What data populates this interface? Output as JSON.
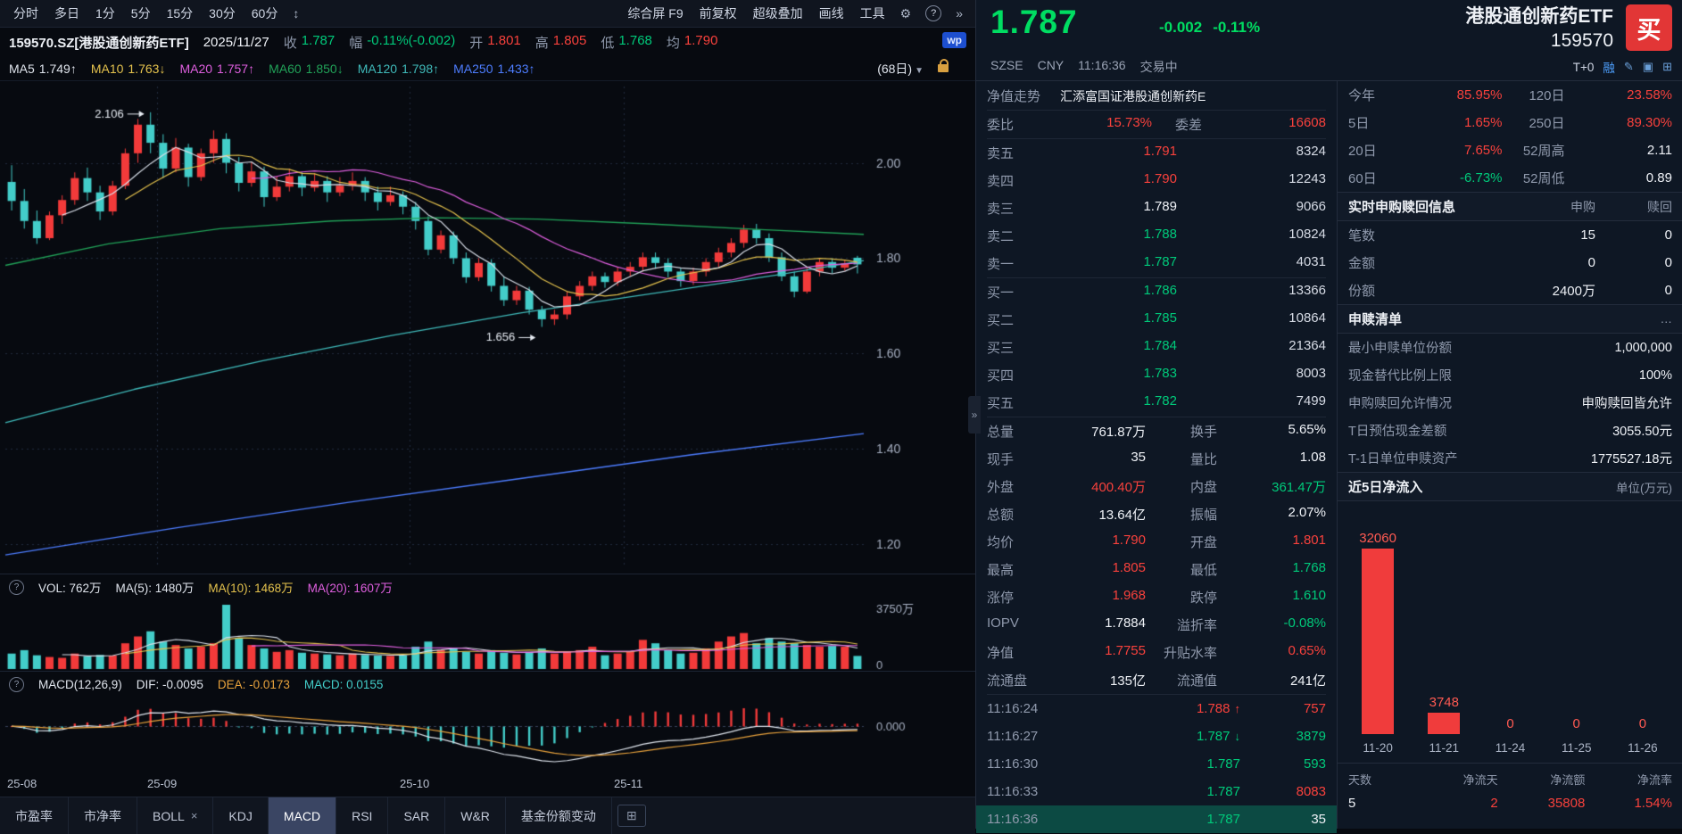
{
  "colors": {
    "red": "#f8413c",
    "green": "#00c97a",
    "big_green": "#00dd62",
    "white": "#eef1f6",
    "gray": "#8f99ac",
    "yellow": "#e4c24d",
    "magenta": "#df5fdf",
    "blue": "#4d7dff",
    "orange": "#e8a23c",
    "cyan": "#43cdc9",
    "ma60": "#21a258",
    "ma120": "#3fb9b9",
    "candle_up": "#f23a3a",
    "candle_down": "#43cdc9",
    "flow_bar": "#f03c3c"
  },
  "toolbar": {
    "periods": [
      "分时",
      "多日",
      "1分",
      "5分",
      "15分",
      "30分",
      "60分"
    ],
    "expand_icon": "↕",
    "tools": [
      "综合屏 F9",
      "前复权",
      "超级叠加",
      "画线",
      "工具"
    ],
    "gear_icon": "⚙",
    "help_icon": "?",
    "more_icon": "»"
  },
  "info_bar": {
    "symbol": "159570.SZ[港股通创新药ETF]",
    "date": "2025/11/27",
    "fields": [
      {
        "label": "收",
        "value": "1.787",
        "color": "green"
      },
      {
        "label": "幅",
        "value": "-0.11%(-0.002)",
        "color": "green"
      },
      {
        "label": "开",
        "value": "1.801",
        "color": "red"
      },
      {
        "label": "高",
        "value": "1.805",
        "color": "red"
      },
      {
        "label": "低",
        "value": "1.768",
        "color": "green"
      },
      {
        "label": "均",
        "value": "1.790",
        "color": "red"
      }
    ],
    "wp_badge": "wp"
  },
  "ma_bar": {
    "items": [
      {
        "label": "MA5",
        "value": "1.749↑",
        "color": "white"
      },
      {
        "label": "MA10",
        "value": "1.763↓",
        "color": "yellow"
      },
      {
        "label": "MA20",
        "value": "1.757↑",
        "color": "magenta"
      },
      {
        "label": "MA60",
        "value": "1.850↓",
        "color": "ma60"
      },
      {
        "label": "MA120",
        "value": "1.798↑",
        "color": "ma120"
      },
      {
        "label": "MA250",
        "value": "1.433↑",
        "color": "blue"
      }
    ],
    "period_selector": "(68日)"
  },
  "vol_header": {
    "vol": "VOL: 762万",
    "ma5": "MA(5): 1480万",
    "ma10": "MA(10): 1468万",
    "ma20": "MA(20): 1607万"
  },
  "macd_header": {
    "name": "MACD(12,26,9)",
    "dif": "DIF: -0.0095",
    "dea": "DEA: -0.0173",
    "macd": "MACD: 0.0155"
  },
  "tabs": [
    {
      "label": "市盈率"
    },
    {
      "label": "市净率"
    },
    {
      "label": "BOLL",
      "closable": true
    },
    {
      "label": "KDJ"
    },
    {
      "label": "MACD",
      "active": true
    },
    {
      "label": "RSI"
    },
    {
      "label": "SAR"
    },
    {
      "label": "W&R"
    },
    {
      "label": "基金份额变动"
    }
  ],
  "tab_add_icon": "⊞",
  "collapse_icon": "»",
  "chart_data": {
    "type": "candlestick",
    "x_labels": [
      "25-08",
      "25-09",
      "25-10",
      "25-11"
    ],
    "x_label_indices": [
      0,
      12,
      32,
      49
    ],
    "y_ticks": [
      "2.00",
      "1.80",
      "1.60",
      "1.40",
      "1.20"
    ],
    "y_tick_values": [
      2.0,
      1.8,
      1.6,
      1.4,
      1.2
    ],
    "price_domain": [
      1.15,
      2.16
    ],
    "annotations": [
      {
        "text": "2.106",
        "index": 11,
        "anchor": "high"
      },
      {
        "text": "1.656",
        "index": 42,
        "anchor": "low"
      }
    ],
    "candles": [
      [
        1.96,
        1.995,
        1.9,
        1.92
      ],
      [
        1.92,
        1.945,
        1.862,
        1.878
      ],
      [
        1.878,
        1.9,
        1.83,
        1.842
      ],
      [
        1.842,
        1.898,
        1.838,
        1.89
      ],
      [
        1.89,
        1.932,
        1.872,
        1.922
      ],
      [
        1.922,
        1.98,
        1.912,
        1.968
      ],
      [
        1.968,
        1.99,
        1.92,
        1.938
      ],
      [
        1.938,
        1.952,
        1.88,
        1.898
      ],
      [
        1.898,
        1.962,
        1.89,
        1.952
      ],
      [
        1.952,
        2.03,
        1.945,
        2.02
      ],
      [
        2.02,
        2.092,
        2.0,
        2.08
      ],
      [
        2.08,
        2.106,
        2.02,
        2.042
      ],
      [
        2.042,
        2.06,
        1.968,
        1.988
      ],
      [
        1.988,
        2.052,
        1.98,
        2.032
      ],
      [
        2.032,
        2.04,
        1.95,
        1.97
      ],
      [
        1.97,
        2.03,
        1.962,
        2.02
      ],
      [
        2.02,
        2.068,
        2.0,
        2.05
      ],
      [
        2.05,
        2.062,
        1.978,
        2.0
      ],
      [
        2.0,
        2.012,
        1.94,
        1.958
      ],
      [
        1.958,
        2.002,
        1.95,
        1.982
      ],
      [
        1.982,
        1.992,
        1.908,
        1.928
      ],
      [
        1.928,
        1.972,
        1.92,
        1.95
      ],
      [
        1.95,
        1.988,
        1.94,
        1.972
      ],
      [
        1.972,
        1.98,
        1.93,
        1.948
      ],
      [
        1.948,
        1.978,
        1.94,
        1.962
      ],
      [
        1.962,
        1.972,
        1.918,
        1.938
      ],
      [
        1.938,
        1.97,
        1.93,
        1.952
      ],
      [
        1.952,
        1.98,
        1.942,
        1.962
      ],
      [
        1.962,
        1.97,
        1.92,
        1.938
      ],
      [
        1.938,
        1.95,
        1.9,
        1.918
      ],
      [
        1.918,
        1.95,
        1.91,
        1.932
      ],
      [
        1.932,
        1.94,
        1.892,
        1.908
      ],
      [
        1.908,
        1.918,
        1.86,
        1.878
      ],
      [
        1.878,
        1.888,
        1.806,
        1.818
      ],
      [
        1.818,
        1.858,
        1.81,
        1.848
      ],
      [
        1.848,
        1.856,
        1.788,
        1.8
      ],
      [
        1.8,
        1.812,
        1.748,
        1.76
      ],
      [
        1.76,
        1.8,
        1.752,
        1.79
      ],
      [
        1.79,
        1.798,
        1.73,
        1.742
      ],
      [
        1.742,
        1.762,
        1.7,
        1.712
      ],
      [
        1.712,
        1.742,
        1.702,
        1.732
      ],
      [
        1.732,
        1.74,
        1.682,
        1.692
      ],
      [
        1.692,
        1.7,
        1.656,
        1.672
      ],
      [
        1.672,
        1.692,
        1.66,
        1.682
      ],
      [
        1.682,
        1.73,
        1.672,
        1.72
      ],
      [
        1.72,
        1.752,
        1.712,
        1.742
      ],
      [
        1.742,
        1.772,
        1.732,
        1.762
      ],
      [
        1.762,
        1.77,
        1.738,
        1.75
      ],
      [
        1.75,
        1.782,
        1.742,
        1.772
      ],
      [
        1.772,
        1.792,
        1.762,
        1.782
      ],
      [
        1.782,
        1.812,
        1.772,
        1.802
      ],
      [
        1.802,
        1.812,
        1.778,
        1.79
      ],
      [
        1.79,
        1.8,
        1.76,
        1.772
      ],
      [
        1.772,
        1.78,
        1.74,
        1.752
      ],
      [
        1.752,
        1.78,
        1.744,
        1.772
      ],
      [
        1.772,
        1.8,
        1.762,
        1.792
      ],
      [
        1.792,
        1.822,
        1.782,
        1.812
      ],
      [
        1.812,
        1.842,
        1.802,
        1.832
      ],
      [
        1.832,
        1.87,
        1.822,
        1.86
      ],
      [
        1.86,
        1.872,
        1.83,
        1.842
      ],
      [
        1.842,
        1.852,
        1.792,
        1.802
      ],
      [
        1.802,
        1.812,
        1.752,
        1.762
      ],
      [
        1.762,
        1.772,
        1.718,
        1.73
      ],
      [
        1.73,
        1.78,
        1.726,
        1.772
      ],
      [
        1.772,
        1.8,
        1.762,
        1.792
      ],
      [
        1.792,
        1.8,
        1.768,
        1.78
      ],
      [
        1.78,
        1.796,
        1.774,
        1.789
      ],
      [
        1.801,
        1.805,
        1.768,
        1.787
      ]
    ],
    "volumes": [
      900,
      1100,
      800,
      700,
      650,
      900,
      750,
      820,
      780,
      1500,
      1900,
      2200,
      1600,
      1400,
      1200,
      1300,
      1500,
      3750,
      1800,
      1400,
      1200,
      1000,
      1100,
      950,
      900,
      850,
      800,
      900,
      820,
      780,
      760,
      800,
      1300,
      1600,
      1100,
      1200,
      1000,
      900,
      1100,
      950,
      850,
      1000,
      1200,
      900,
      1000,
      1100,
      1300,
      800,
      900,
      1000,
      1700,
      1500,
      1100,
      900,
      950,
      1200,
      1600,
      1900,
      2100,
      1500,
      1800,
      1600,
      1500,
      1400,
      1300,
      1350,
      1300,
      762
    ],
    "vol_max": 3750,
    "vol_axis_top": "3750万",
    "vol_axis_bottom": "0",
    "macd_zero_label": "0.000",
    "ma_long": {
      "ma60": [
        [
          0,
          1.785
        ],
        [
          0.12,
          1.83
        ],
        [
          0.25,
          1.862
        ],
        [
          0.38,
          1.878
        ],
        [
          0.5,
          1.885
        ],
        [
          0.62,
          1.882
        ],
        [
          0.75,
          1.872
        ],
        [
          0.88,
          1.86
        ],
        [
          1,
          1.85
        ]
      ],
      "ma120": [
        [
          0,
          1.455
        ],
        [
          0.15,
          1.525
        ],
        [
          0.3,
          1.585
        ],
        [
          0.45,
          1.638
        ],
        [
          0.6,
          1.685
        ],
        [
          0.75,
          1.725
        ],
        [
          0.9,
          1.765
        ],
        [
          1,
          1.795
        ]
      ],
      "ma250": [
        [
          0,
          1.178
        ],
        [
          0.2,
          1.235
        ],
        [
          0.4,
          1.288
        ],
        [
          0.6,
          1.338
        ],
        [
          0.8,
          1.388
        ],
        [
          1,
          1.432
        ]
      ]
    }
  },
  "quote": {
    "price": "1.787",
    "change": "-0.002",
    "change_pct": "-0.11%",
    "name": "港股通创新药ETF",
    "code": "159570",
    "buy_button": "买",
    "exchange": "SZSE",
    "currency": "CNY",
    "time": "11:16:36",
    "status": "交易中",
    "t0_badge": "T+0",
    "margin_badge": "融"
  },
  "orderbook": {
    "nav_row": {
      "label": "净值走势",
      "value": "汇添富国证港股通创新药E"
    },
    "weibi": {
      "label": "委比",
      "value": "15.73%",
      "diff_label": "委差",
      "diff_value": "16608"
    },
    "asks": [
      {
        "label": "卖五",
        "price": "1.791",
        "vol": "8324",
        "color": "red"
      },
      {
        "label": "卖四",
        "price": "1.790",
        "vol": "12243",
        "color": "red"
      },
      {
        "label": "卖三",
        "price": "1.789",
        "vol": "9066",
        "color": "white"
      },
      {
        "label": "卖二",
        "price": "1.788",
        "vol": "10824",
        "color": "green"
      },
      {
        "label": "卖一",
        "price": "1.787",
        "vol": "4031",
        "color": "green"
      }
    ],
    "bids": [
      {
        "label": "买一",
        "price": "1.786",
        "vol": "13366",
        "color": "green"
      },
      {
        "label": "买二",
        "price": "1.785",
        "vol": "10864",
        "color": "green"
      },
      {
        "label": "买三",
        "price": "1.784",
        "vol": "21364",
        "color": "green"
      },
      {
        "label": "买四",
        "price": "1.783",
        "vol": "8003",
        "color": "green"
      },
      {
        "label": "买五",
        "price": "1.782",
        "vol": "7499",
        "color": "green"
      }
    ],
    "stats": [
      [
        {
          "l": "总量",
          "v": "761.87万",
          "c": "white"
        },
        {
          "l": "换手",
          "v": "5.65%",
          "c": "white"
        }
      ],
      [
        {
          "l": "现手",
          "v": "35",
          "c": "white"
        },
        {
          "l": "量比",
          "v": "1.08",
          "c": "white"
        }
      ],
      [
        {
          "l": "外盘",
          "v": "400.40万",
          "c": "red"
        },
        {
          "l": "内盘",
          "v": "361.47万",
          "c": "green"
        }
      ],
      [
        {
          "l": "总额",
          "v": "13.64亿",
          "c": "white"
        },
        {
          "l": "振幅",
          "v": "2.07%",
          "c": "white"
        }
      ],
      [
        {
          "l": "均价",
          "v": "1.790",
          "c": "red"
        },
        {
          "l": "开盘",
          "v": "1.801",
          "c": "red"
        }
      ],
      [
        {
          "l": "最高",
          "v": "1.805",
          "c": "red"
        },
        {
          "l": "最低",
          "v": "1.768",
          "c": "green"
        }
      ],
      [
        {
          "l": "涨停",
          "v": "1.968",
          "c": "red"
        },
        {
          "l": "跌停",
          "v": "1.610",
          "c": "green"
        }
      ],
      [
        {
          "l": "IOPV",
          "v": "1.7884",
          "c": "white"
        },
        {
          "l": "溢折率",
          "v": "-0.08%",
          "c": "green"
        }
      ],
      [
        {
          "l": "净值",
          "v": "1.7755",
          "c": "red"
        },
        {
          "l": "升贴水率",
          "v": "0.65%",
          "c": "red"
        }
      ],
      [
        {
          "l": "流通盘",
          "v": "135亿",
          "c": "white"
        },
        {
          "l": "流通值",
          "v": "241亿",
          "c": "white"
        }
      ]
    ],
    "ticks": [
      {
        "time": "11:16:24",
        "price": "1.788",
        "price_color": "red",
        "dir": "up",
        "vol": "757",
        "vol_color": "red",
        "highlight": false
      },
      {
        "time": "11:16:27",
        "price": "1.787",
        "price_color": "green",
        "dir": "down",
        "vol": "3879",
        "vol_color": "green",
        "highlight": false
      },
      {
        "time": "11:16:30",
        "price": "1.787",
        "price_color": "green",
        "dir": "",
        "vol": "593",
        "vol_color": "green",
        "highlight": false
      },
      {
        "time": "11:16:33",
        "price": "1.787",
        "price_color": "green",
        "dir": "",
        "vol": "8083",
        "vol_color": "red",
        "highlight": false
      },
      {
        "time": "11:16:36",
        "price": "1.787",
        "price_color": "green",
        "dir": "",
        "vol": "35",
        "vol_color": "white",
        "highlight": true
      }
    ]
  },
  "performance": [
    [
      {
        "l": "今年",
        "v": "85.95%",
        "c": "red"
      },
      {
        "l": "120日",
        "v": "23.58%",
        "c": "red"
      }
    ],
    [
      {
        "l": "5日",
        "v": "1.65%",
        "c": "red"
      },
      {
        "l": "250日",
        "v": "89.30%",
        "c": "red"
      }
    ],
    [
      {
        "l": "20日",
        "v": "7.65%",
        "c": "red"
      },
      {
        "l": "52周高",
        "v": "2.11",
        "c": "white"
      }
    ],
    [
      {
        "l": "60日",
        "v": "-6.73%",
        "c": "green"
      },
      {
        "l": "52周低",
        "v": "0.89",
        "c": "white"
      }
    ]
  ],
  "subscription": {
    "header": "实时申购赎回信息",
    "col1": "申购",
    "col2": "赎回",
    "rows": [
      {
        "l": "笔数",
        "v1": "15",
        "v2": "0"
      },
      {
        "l": "金额",
        "v1": "0",
        "v2": "0"
      },
      {
        "l": "份额",
        "v1": "2400万",
        "v2": "0"
      }
    ]
  },
  "redemption_list": {
    "header": "申赎清单",
    "more": "…",
    "rows": [
      {
        "l": "最小申赎单位份额",
        "v": "1,000,000"
      },
      {
        "l": "现金替代比例上限",
        "v": "100%"
      },
      {
        "l": "申购赎回允许情况",
        "v": "申购赎回皆允许"
      },
      {
        "l": "T日预估现金差额",
        "v": "3055.50元"
      },
      {
        "l": "T-1日单位申赎资产",
        "v": "1775527.18元"
      }
    ]
  },
  "net_inflow": {
    "header": "近5日净流入",
    "unit": "单位(万元)",
    "max_value": 32060,
    "bars": [
      {
        "date": "11-20",
        "value": 32060,
        "label": "32060"
      },
      {
        "date": "11-21",
        "value": 3748,
        "label": "3748"
      },
      {
        "date": "11-24",
        "value": 0,
        "label": "0"
      },
      {
        "date": "11-25",
        "value": 0,
        "label": "0"
      },
      {
        "date": "11-26",
        "value": 0,
        "label": "0"
      }
    ],
    "footer": [
      {
        "l": "天数",
        "v": "5",
        "c": "white"
      },
      {
        "l": "净流天",
        "v": "2",
        "c": "red"
      },
      {
        "l": "净流额",
        "v": "35808",
        "c": "red"
      },
      {
        "l": "净流率",
        "v": "1.54%",
        "c": "red"
      }
    ]
  }
}
